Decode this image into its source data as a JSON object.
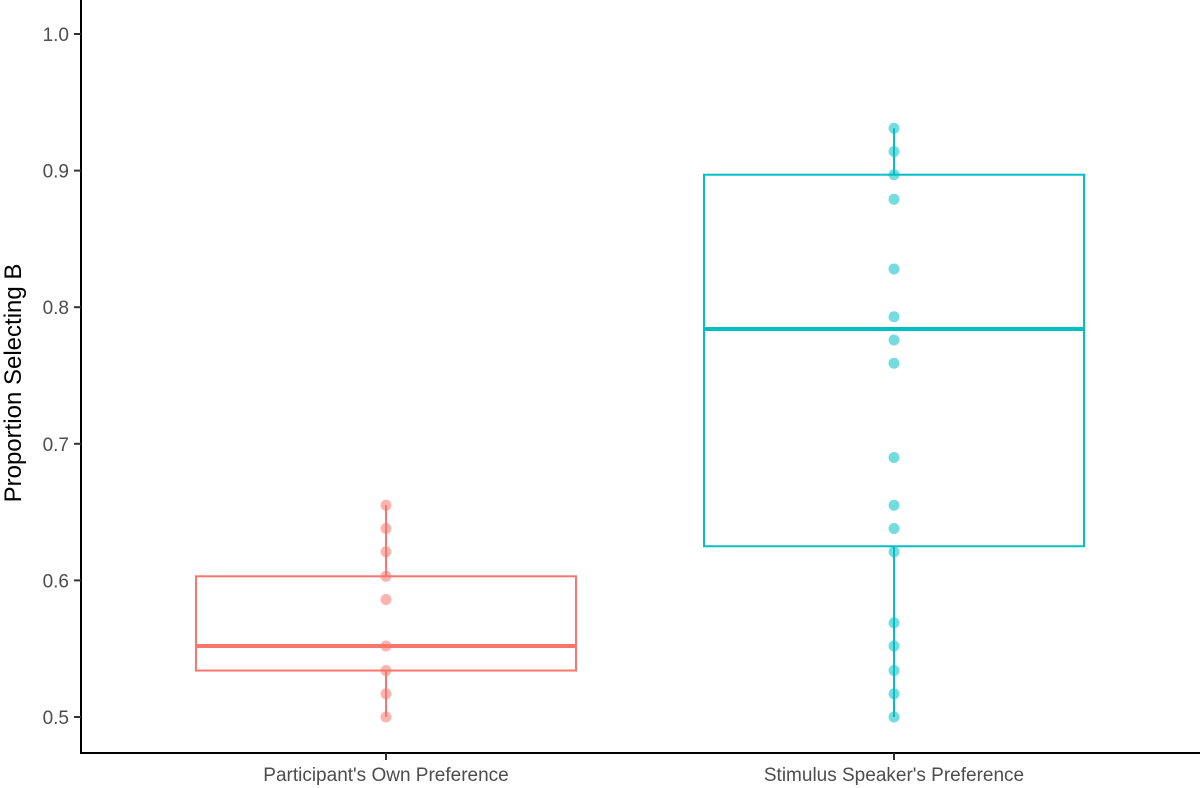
{
  "chart_data": {
    "type": "boxplot",
    "title": "",
    "xlabel": "",
    "ylabel": "Proportion Selecting B",
    "ylim": [
      0.476,
      1.025
    ],
    "yticks": [
      0.5,
      0.6,
      0.7,
      0.8,
      0.9,
      1.0
    ],
    "ytick_labels": [
      "0.5",
      "0.6",
      "0.7",
      "0.8",
      "0.9",
      "1.0"
    ],
    "categories": [
      "Participant's Own Preference",
      "Stimulus Speaker's Preference"
    ],
    "grid": false,
    "legend": "none",
    "series": [
      {
        "color": "#f8766d",
        "box": {
          "whisker_low": 0.5,
          "q1": 0.534,
          "median": 0.552,
          "q3": 0.603,
          "whisker_high": 0.655
        },
        "points": [
          0.5,
          0.517,
          0.534,
          0.552,
          0.586,
          0.603,
          0.621,
          0.638,
          0.655
        ]
      },
      {
        "color": "#00bfc4",
        "box": {
          "whisker_low": 0.5,
          "q1": 0.625,
          "median": 0.784,
          "q3": 0.897,
          "whisker_high": 0.931
        },
        "points": [
          0.5,
          0.517,
          0.534,
          0.552,
          0.569,
          0.621,
          0.638,
          0.655,
          0.69,
          0.759,
          0.776,
          0.793,
          0.828,
          0.879,
          0.897,
          0.914,
          0.931
        ]
      }
    ]
  }
}
